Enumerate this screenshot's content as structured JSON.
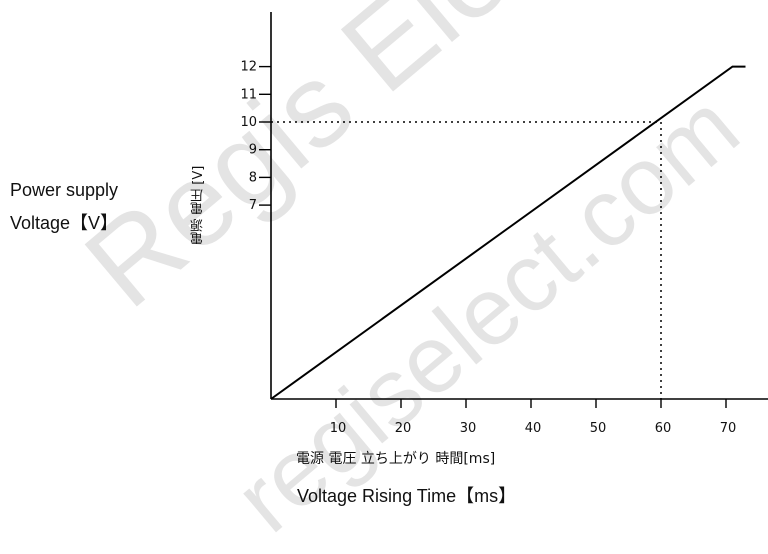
{
  "chart_data": {
    "type": "line",
    "title": "",
    "xlabel": "Voltage Rising Time【ms】",
    "xlabel_jp": "電源 電圧 立ち上がり 時間[ms]",
    "ylabel": "Power supply Voltage【V】",
    "ylabel_lines": [
      "Power supply",
      "Voltage【V】"
    ],
    "ylabel_jp": "電源 電圧 [V]",
    "x_ticks": [
      10,
      20,
      30,
      40,
      50,
      60,
      70
    ],
    "y_ticks": [
      7,
      8,
      9,
      10,
      11,
      12
    ],
    "xlim": [
      0,
      73
    ],
    "ylim": [
      0,
      12
    ],
    "series": [
      {
        "x": [
          0,
          71,
          73
        ],
        "y": [
          0,
          12,
          12
        ]
      }
    ],
    "reference": {
      "x": 60,
      "y": 10,
      "style": "dotted"
    },
    "grid": false
  },
  "watermark": [
    "Regis Electronic Group",
    "regiselect.com"
  ]
}
